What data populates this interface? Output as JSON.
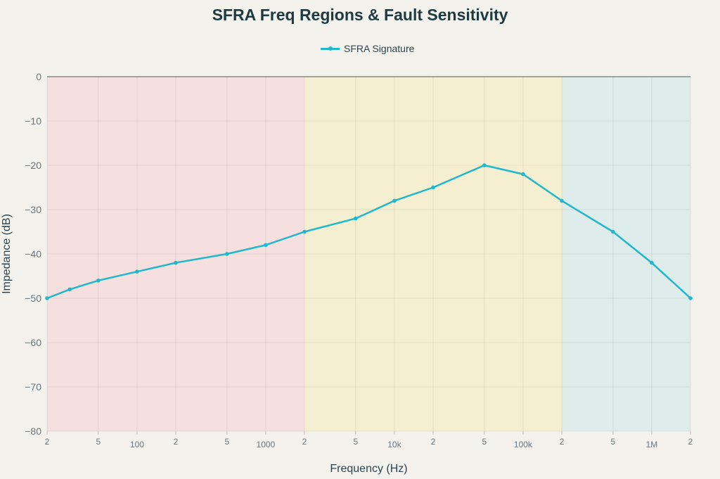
{
  "chart_data": {
    "type": "line",
    "title": "SFRA Freq Regions & Fault Sensitivity",
    "xlabel": "Frequency (Hz)",
    "ylabel": "Impedance (dB)",
    "xscale": "log",
    "xlim": [
      20,
      2000000
    ],
    "ylim": [
      -80,
      0
    ],
    "grid": true,
    "legend_position": "top-center",
    "series": [
      {
        "name": "SFRA Signature",
        "color": "#1fb8cd",
        "x": [
          20,
          30,
          50,
          100,
          200,
          500,
          1000,
          2000,
          5000,
          10000,
          20000,
          50000,
          100000,
          200000,
          500000,
          1000000,
          2000000
        ],
        "y": [
          -50,
          -48,
          -46,
          -44,
          -42,
          -40,
          -38,
          -35,
          -32,
          -28,
          -25,
          -20,
          -22,
          -28,
          -35,
          -42,
          -50
        ]
      }
    ],
    "regions": [
      {
        "from": 20,
        "to": 2000,
        "color": "#f5dfdf"
      },
      {
        "from": 2000,
        "to": 200000,
        "color": "#f5efd1"
      },
      {
        "from": 200000,
        "to": 2000000,
        "color": "#dfecec"
      }
    ],
    "x_ticks": [
      {
        "value": 20,
        "label": "2",
        "major": false
      },
      {
        "value": 50,
        "label": "5",
        "major": false
      },
      {
        "value": 100,
        "label": "100",
        "major": true
      },
      {
        "value": 200,
        "label": "2",
        "major": false
      },
      {
        "value": 500,
        "label": "5",
        "major": false
      },
      {
        "value": 1000,
        "label": "1000",
        "major": true
      },
      {
        "value": 2000,
        "label": "2",
        "major": false
      },
      {
        "value": 5000,
        "label": "5",
        "major": false
      },
      {
        "value": 10000,
        "label": "10k",
        "major": true
      },
      {
        "value": 20000,
        "label": "2",
        "major": false
      },
      {
        "value": 50000,
        "label": "5",
        "major": false
      },
      {
        "value": 100000,
        "label": "100k",
        "major": true
      },
      {
        "value": 200000,
        "label": "2",
        "major": false
      },
      {
        "value": 500000,
        "label": "5",
        "major": false
      },
      {
        "value": 1000000,
        "label": "1M",
        "major": true
      },
      {
        "value": 2000000,
        "label": "2",
        "major": false
      }
    ],
    "y_ticks": [
      {
        "value": 0,
        "label": "0"
      },
      {
        "value": -10,
        "label": "−10"
      },
      {
        "value": -20,
        "label": "−20"
      },
      {
        "value": -30,
        "label": "−30"
      },
      {
        "value": -40,
        "label": "−40"
      },
      {
        "value": -50,
        "label": "−50"
      },
      {
        "value": -60,
        "label": "−60"
      },
      {
        "value": -70,
        "label": "−70"
      },
      {
        "value": -80,
        "label": "−80"
      }
    ]
  }
}
